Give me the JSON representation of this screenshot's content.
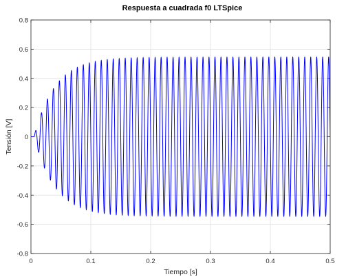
{
  "chart_data": {
    "type": "line",
    "title": "Respuesta a cuadrada f0 LTSpice",
    "xlabel": "Tiempo [s]",
    "ylabel": "Tensión [V]",
    "xlim": [
      0,
      0.5
    ],
    "ylim": [
      -0.8,
      0.8
    ],
    "xticks": [
      0,
      0.1,
      0.2,
      0.3,
      0.4,
      0.5
    ],
    "xtick_labels": [
      "0",
      "0.1",
      "0.2",
      "0.3",
      "0.4",
      "0.5"
    ],
    "yticks": [
      -0.8,
      -0.6,
      -0.4,
      -0.2,
      0,
      0.2,
      0.4,
      0.6,
      0.8
    ],
    "ytick_labels": [
      "-0.8",
      "-0.6",
      "-0.4",
      "-0.2",
      "0",
      "0.2",
      "0.4",
      "0.6",
      "0.8"
    ],
    "grid": true,
    "series": [
      {
        "color": "#0000ff",
        "model": "exponentially growing sinusoid approaching steady state",
        "frequency_hz": 100,
        "steady_amplitude": 0.545,
        "time_constant_s": 0.035,
        "start_time_s": 0.005,
        "x_end": 0.5
      }
    ]
  }
}
